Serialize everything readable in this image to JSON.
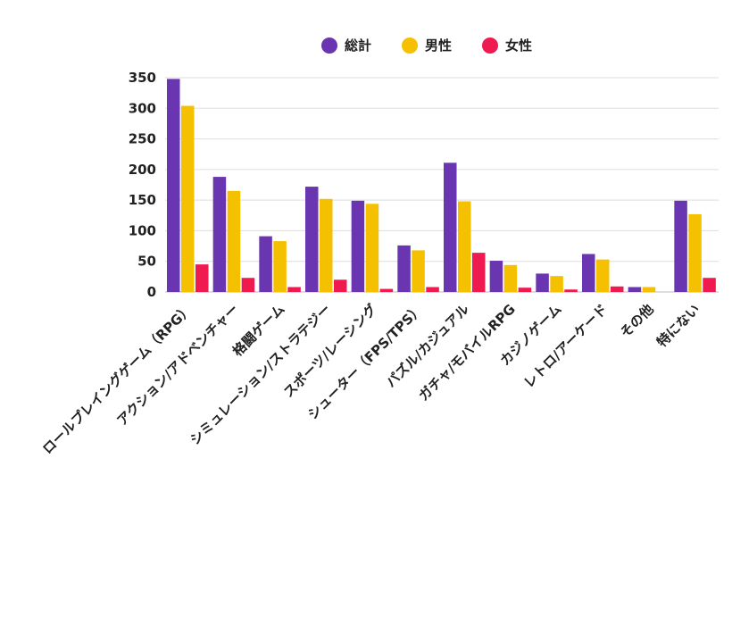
{
  "chart_data": {
    "type": "bar",
    "categories": [
      "ロールプレイングゲーム（RPG）",
      "アクション/アドベンチャー",
      "格闘ゲーム",
      "シミュレーション/ストラテジー",
      "スポーツ/レーシング",
      "シューター（FPS/TPS）",
      "パズル/カジュアル",
      "ガチャ/モバイルRPG",
      "カジノゲーム",
      "レトロ/アーケード",
      "その他",
      "特にない"
    ],
    "series": [
      {
        "name": "総計",
        "color": "#6a35b0",
        "values": [
          348,
          188,
          91,
          172,
          149,
          76,
          211,
          51,
          30,
          62,
          8,
          149
        ]
      },
      {
        "name": "男性",
        "color": "#f5c000",
        "values": [
          304,
          165,
          83,
          152,
          144,
          68,
          148,
          44,
          26,
          53,
          8,
          127
        ]
      },
      {
        "name": "女性",
        "color": "#ee1a50",
        "values": [
          45,
          23,
          8,
          20,
          5,
          8,
          64,
          7,
          4,
          9,
          0,
          23
        ]
      }
    ],
    "ylim": [
      0,
      350
    ],
    "yticks": [
      0,
      50,
      100,
      150,
      200,
      250,
      300,
      350
    ],
    "grid": true,
    "legend": "top-center"
  }
}
